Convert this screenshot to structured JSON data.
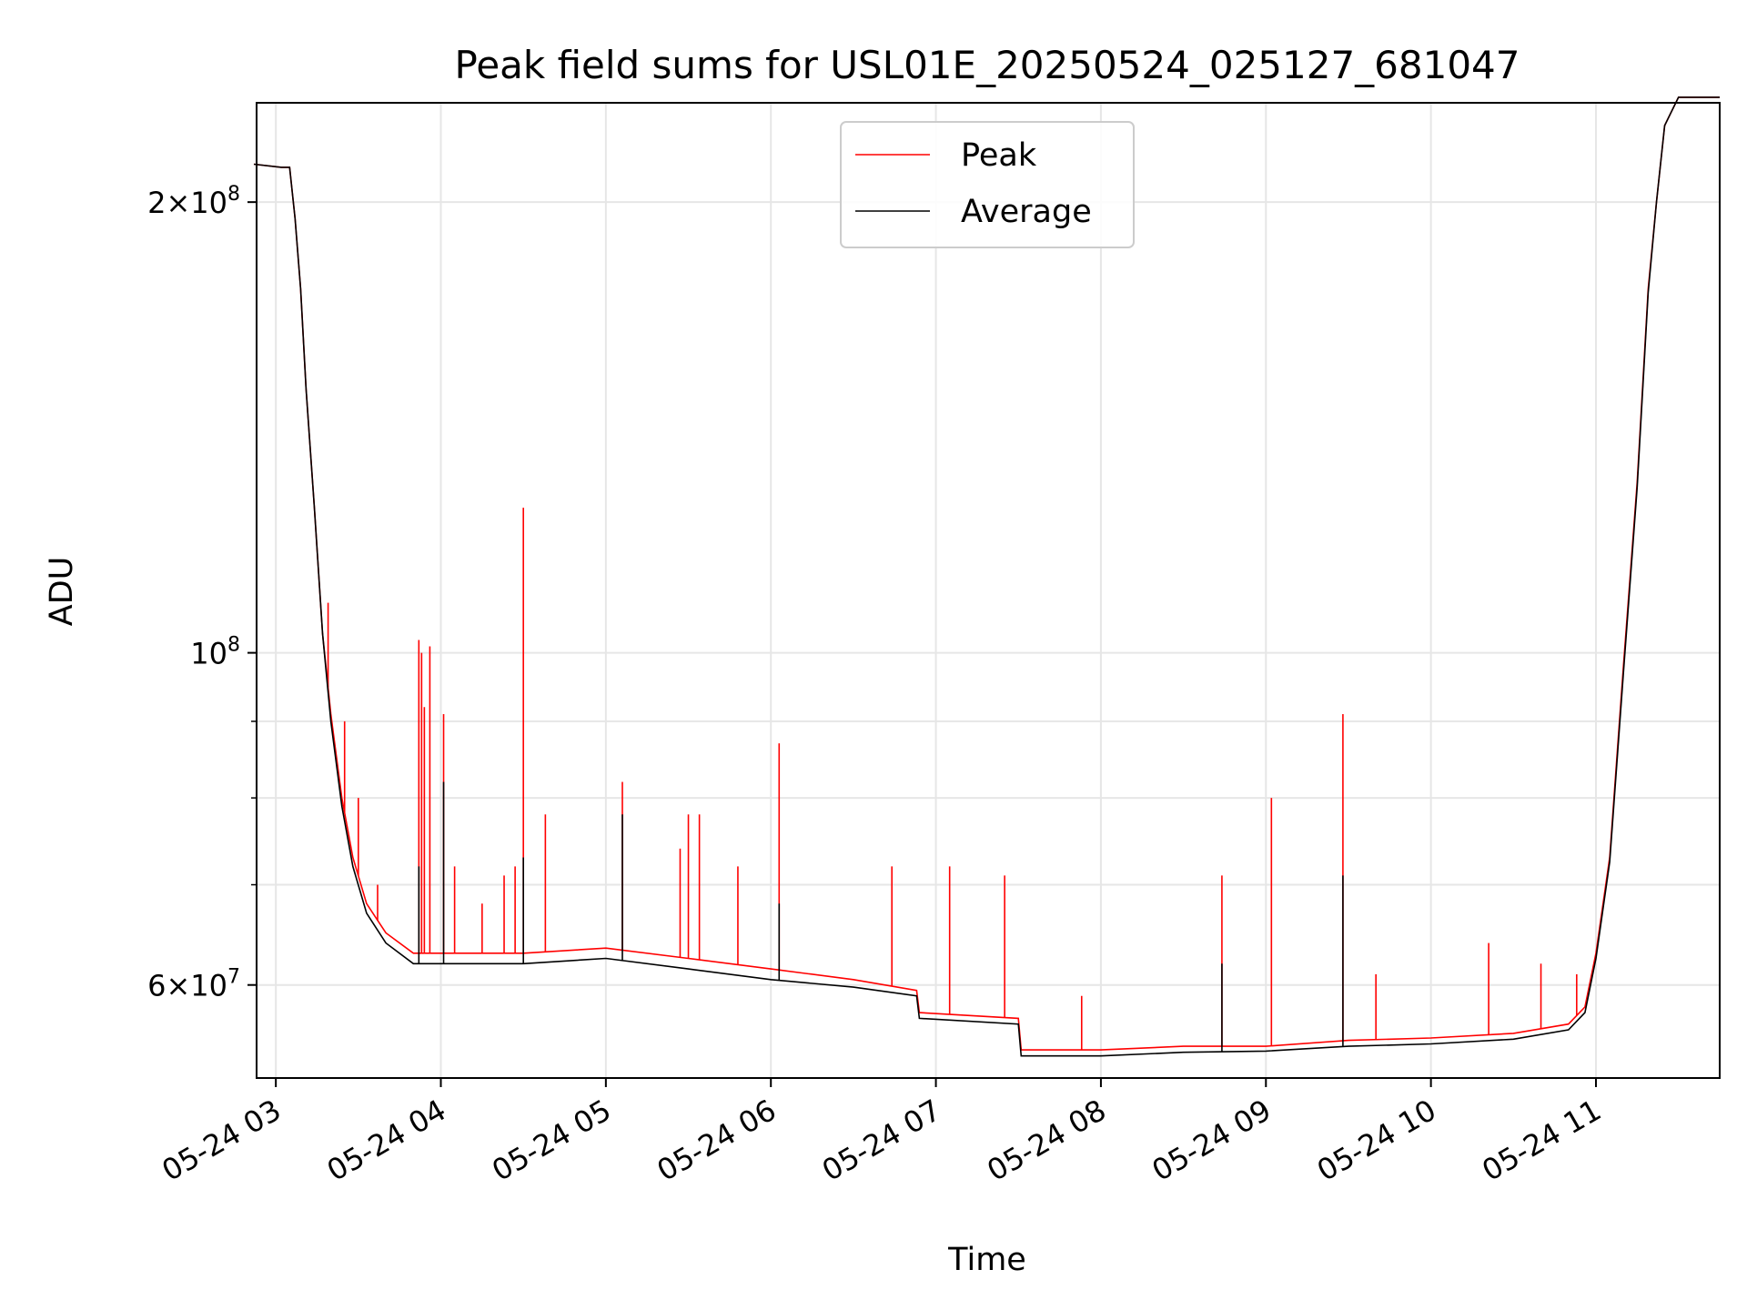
{
  "chart_data": {
    "type": "line",
    "title": "Peak field sums for USL01E_20250524_025127_681047",
    "xlabel": "Time",
    "ylabel": "ADU",
    "y_scale": "log",
    "ylim": [
      52000000,
      233000000
    ],
    "xlim": [
      "05-24 02:53",
      "05-24 11:45"
    ],
    "grid": true,
    "legend_position": "top-center",
    "x_ticks": [
      {
        "time": "05-24 03:00",
        "label": "05-24 03"
      },
      {
        "time": "05-24 04:00",
        "label": "05-24 04"
      },
      {
        "time": "05-24 05:00",
        "label": "05-24 05"
      },
      {
        "time": "05-24 06:00",
        "label": "05-24 06"
      },
      {
        "time": "05-24 07:00",
        "label": "05-24 07"
      },
      {
        "time": "05-24 08:00",
        "label": "05-24 08"
      },
      {
        "time": "05-24 09:00",
        "label": "05-24 09"
      },
      {
        "time": "05-24 10:00",
        "label": "05-24 10"
      },
      {
        "time": "05-24 11:00",
        "label": "05-24 11"
      }
    ],
    "y_ticks_major": [
      {
        "value": 60000000,
        "mantissa": "6",
        "exponent": "7"
      },
      {
        "value": 100000000,
        "mantissa": "",
        "exponent": "8"
      },
      {
        "value": 200000000,
        "mantissa": "2",
        "exponent": "8"
      }
    ],
    "y_ticks_minor": [
      70000000,
      80000000,
      90000000
    ],
    "series": [
      {
        "name": "Peak",
        "color": "#ff0000",
        "baseline": [
          [
            "05-24 02:52",
            212000000
          ],
          [
            "05-24 03:02",
            211000000
          ],
          [
            "05-24 03:05",
            211000000
          ],
          [
            "05-24 03:07",
            195000000
          ],
          [
            "05-24 03:09",
            175000000
          ],
          [
            "05-24 03:11",
            150000000
          ],
          [
            "05-24 03:14",
            125000000
          ],
          [
            "05-24 03:17",
            103000000
          ],
          [
            "05-24 03:20",
            91000000
          ],
          [
            "05-24 03:24",
            80000000
          ],
          [
            "05-24 03:28",
            73000000
          ],
          [
            "05-24 03:33",
            68000000
          ],
          [
            "05-24 03:40",
            65000000
          ],
          [
            "05-24 03:50",
            63000000
          ],
          [
            "05-24 04:30",
            63000000
          ],
          [
            "05-24 05:00",
            63500000
          ],
          [
            "05-24 05:30",
            62500000
          ],
          [
            "05-24 06:00",
            61500000
          ],
          [
            "05-24 06:30",
            60500000
          ],
          [
            "05-24 06:53",
            59500000
          ],
          [
            "05-24 06:54",
            57500000
          ],
          [
            "05-24 07:30",
            57000000
          ],
          [
            "05-24 07:31",
            54300000
          ],
          [
            "05-24 08:00",
            54300000
          ],
          [
            "05-24 08:30",
            54600000
          ],
          [
            "05-24 09:00",
            54600000
          ],
          [
            "05-24 09:30",
            55100000
          ],
          [
            "05-24 10:00",
            55300000
          ],
          [
            "05-24 10:30",
            55700000
          ],
          [
            "05-24 10:50",
            56500000
          ],
          [
            "05-24 10:56",
            58000000
          ],
          [
            "05-24 11:00",
            63000000
          ],
          [
            "05-24 11:05",
            73000000
          ],
          [
            "05-24 11:10",
            98000000
          ],
          [
            "05-24 11:15",
            130000000
          ],
          [
            "05-24 11:19",
            175000000
          ],
          [
            "05-24 11:22",
            200000000
          ],
          [
            "05-24 11:25",
            225000000
          ],
          [
            "05-24 11:30",
            235000000
          ],
          [
            "05-24 11:45",
            235000000
          ]
        ],
        "spikes": [
          [
            "05-24 03:19",
            108000000
          ],
          [
            "05-24 03:25",
            90000000
          ],
          [
            "05-24 03:30",
            80000000
          ],
          [
            "05-24 03:37",
            70000000
          ],
          [
            "05-24 03:52",
            102000000
          ],
          [
            "05-24 03:53",
            100000000
          ],
          [
            "05-24 03:54",
            92000000
          ],
          [
            "05-24 03:56",
            101000000
          ],
          [
            "05-24 04:01",
            91000000
          ],
          [
            "05-24 04:05",
            72000000
          ],
          [
            "05-24 04:15",
            68000000
          ],
          [
            "05-24 04:23",
            71000000
          ],
          [
            "05-24 04:27",
            72000000
          ],
          [
            "05-24 04:30",
            125000000
          ],
          [
            "05-24 04:38",
            78000000
          ],
          [
            "05-24 05:06",
            82000000
          ],
          [
            "05-24 05:27",
            74000000
          ],
          [
            "05-24 05:30",
            78000000
          ],
          [
            "05-24 05:34",
            78000000
          ],
          [
            "05-24 05:48",
            72000000
          ],
          [
            "05-24 06:03",
            87000000
          ],
          [
            "05-24 06:44",
            72000000
          ],
          [
            "05-24 07:05",
            72000000
          ],
          [
            "05-24 07:25",
            71000000
          ],
          [
            "05-24 07:53",
            59000000
          ],
          [
            "05-24 08:44",
            71000000
          ],
          [
            "05-24 09:02",
            80000000
          ],
          [
            "05-24 09:28",
            91000000
          ],
          [
            "05-24 09:40",
            61000000
          ],
          [
            "05-24 10:21",
            64000000
          ],
          [
            "05-24 10:40",
            62000000
          ],
          [
            "05-24 10:53",
            61000000
          ]
        ]
      },
      {
        "name": "Average",
        "color": "#000000",
        "baseline": [
          [
            "05-24 02:52",
            212000000
          ],
          [
            "05-24 03:02",
            211000000
          ],
          [
            "05-24 03:05",
            211000000
          ],
          [
            "05-24 03:07",
            195000000
          ],
          [
            "05-24 03:09",
            175000000
          ],
          [
            "05-24 03:11",
            150000000
          ],
          [
            "05-24 03:14",
            125000000
          ],
          [
            "05-24 03:17",
            103000000
          ],
          [
            "05-24 03:20",
            90000000
          ],
          [
            "05-24 03:24",
            79000000
          ],
          [
            "05-24 03:28",
            72000000
          ],
          [
            "05-24 03:33",
            67000000
          ],
          [
            "05-24 03:40",
            64000000
          ],
          [
            "05-24 03:50",
            62000000
          ],
          [
            "05-24 04:30",
            62000000
          ],
          [
            "05-24 05:00",
            62500000
          ],
          [
            "05-24 05:30",
            61500000
          ],
          [
            "05-24 06:00",
            60500000
          ],
          [
            "05-24 06:30",
            59800000
          ],
          [
            "05-24 06:53",
            59000000
          ],
          [
            "05-24 06:54",
            57000000
          ],
          [
            "05-24 07:30",
            56500000
          ],
          [
            "05-24 07:31",
            53800000
          ],
          [
            "05-24 08:00",
            53800000
          ],
          [
            "05-24 08:30",
            54100000
          ],
          [
            "05-24 09:00",
            54200000
          ],
          [
            "05-24 09:30",
            54600000
          ],
          [
            "05-24 10:00",
            54800000
          ],
          [
            "05-24 10:30",
            55200000
          ],
          [
            "05-24 10:50",
            56000000
          ],
          [
            "05-24 10:56",
            57500000
          ],
          [
            "05-24 11:00",
            62500000
          ],
          [
            "05-24 11:05",
            72500000
          ],
          [
            "05-24 11:10",
            97000000
          ],
          [
            "05-24 11:15",
            129000000
          ],
          [
            "05-24 11:19",
            174000000
          ],
          [
            "05-24 11:22",
            200000000
          ],
          [
            "05-24 11:25",
            225000000
          ],
          [
            "05-24 11:30",
            235000000
          ],
          [
            "05-24 11:45",
            235000000
          ]
        ],
        "spikes": [
          [
            "05-24 03:52",
            72000000
          ],
          [
            "05-24 04:01",
            82000000
          ],
          [
            "05-24 04:30",
            73000000
          ],
          [
            "05-24 05:06",
            78000000
          ],
          [
            "05-24 06:03",
            68000000
          ],
          [
            "05-24 08:44",
            62000000
          ],
          [
            "05-24 09:28",
            71000000
          ]
        ]
      }
    ]
  }
}
